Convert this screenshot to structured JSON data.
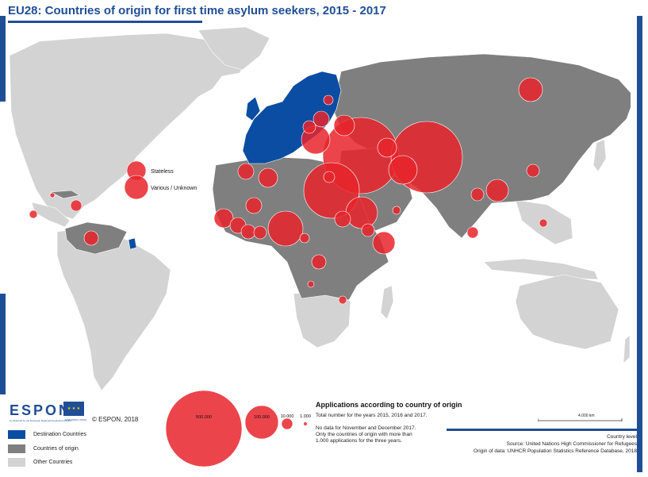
{
  "title": "EU28: Countries of origin for first time asylum seekers, 2015 - 2017",
  "colors": {
    "accent": "#1f4e96",
    "destination": "#0a4da2",
    "origin": "#7f7f7f",
    "other": "#d3d3d3",
    "bubble": "#e8252b"
  },
  "map_legend_circles": [
    {
      "label": "Stateless"
    },
    {
      "label": "Various / Unknown"
    }
  ],
  "logo": {
    "name": "ESPON",
    "tagline": "Co-financed by the European Regional Development Fund",
    "eu_tagline": "EUROPEAN UNION"
  },
  "copyright": "© ESPON, 2018",
  "legend": {
    "items": [
      {
        "label": "Destination Countries",
        "color": "#0a4da2"
      },
      {
        "label": "Countries of origin",
        "color": "#7f7f7f"
      },
      {
        "label": "Other Countries",
        "color": "#d3d3d3"
      }
    ]
  },
  "proportional_legend": {
    "title": "Applications according to country of origin",
    "subtitle": "Total number for the years 2015, 2016 and 2017.",
    "note_lines": [
      "No data for November and December 2017.",
      "Only the countries of origin with more than",
      "1.000 applications for the three years."
    ],
    "circles": [
      {
        "value": 500000,
        "label": "500.000"
      },
      {
        "value": 100000,
        "label": "100.000"
      },
      {
        "value": 10000,
        "label": "10.000"
      },
      {
        "value": 1000,
        "label": "1.000"
      }
    ]
  },
  "scale_bar": {
    "label": "4.000 km"
  },
  "source": {
    "lines": [
      "Country level",
      "Source: United Nations High Commissioner for Refugees",
      "Origin of data: UNHCR Population Statistics Reference Database, 2018"
    ]
  }
}
